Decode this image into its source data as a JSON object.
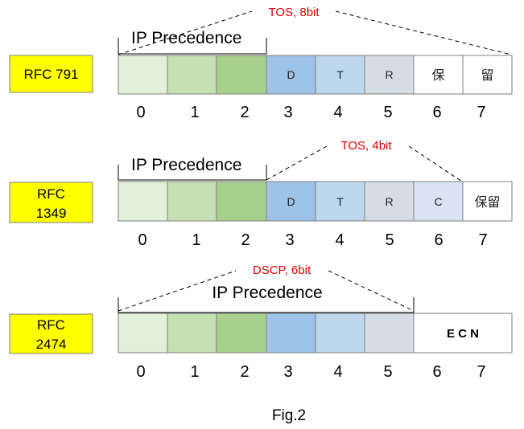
{
  "row1": {
    "rfc_label": "RFC 791",
    "bracket_label": "IP Precedence",
    "field_label": "TOS, 8bit",
    "cells": [
      "",
      "",
      "",
      "D",
      "T",
      "R",
      "保",
      "留"
    ],
    "bits": [
      "0",
      "1",
      "2",
      "3",
      "4",
      "5",
      "6",
      "7"
    ]
  },
  "row2": {
    "rfc_line1": "RFC",
    "rfc_line2": "1349",
    "bracket_label": "IP Precedence",
    "field_label": "TOS, 4bit",
    "cells": [
      "",
      "",
      "",
      "D",
      "T",
      "R",
      "C",
      "保留"
    ],
    "bits": [
      "0",
      "1",
      "2",
      "3",
      "4",
      "5",
      "6",
      "7"
    ]
  },
  "row3": {
    "rfc_line1": "RFC",
    "rfc_line2": "2474",
    "bracket_label": "IP Precedence",
    "field_label": "DSCP, 6bit",
    "ecn_label": "E C N",
    "bits": [
      "0",
      "1",
      "2",
      "3",
      "4",
      "5",
      "6",
      "7"
    ]
  },
  "caption": "Fig.2",
  "colors": {
    "label_box": "#ffff00",
    "cell0": "#e2efd9",
    "cell1": "#c5e0b3",
    "cell2": "#a8d08d",
    "cell3": "#9dc3e6",
    "cell4": "#bdd7ee",
    "cell5": "#d6dce4",
    "cell6_row2": "#dae3f3",
    "white": "#ffffff",
    "red_text": "#e00000"
  }
}
